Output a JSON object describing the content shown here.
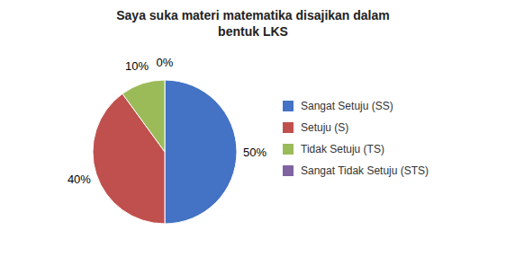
{
  "chart_data": {
    "type": "pie",
    "title": "Saya suka materi matematika disajikan dalam\nbentuk LKS",
    "categories": [
      "Sangat Setuju (SS)",
      "Setuju (S)",
      "Tidak Setuju (TS)",
      "Sangat Tidak Setuju (STS)"
    ],
    "values": [
      50,
      40,
      10,
      0
    ],
    "value_labels": [
      "50%",
      "40%",
      "10%",
      "0%"
    ],
    "colors": [
      "#4472C4",
      "#C0504D",
      "#9BBB59",
      "#8064A2"
    ],
    "data_labels": true,
    "legend": "right"
  }
}
